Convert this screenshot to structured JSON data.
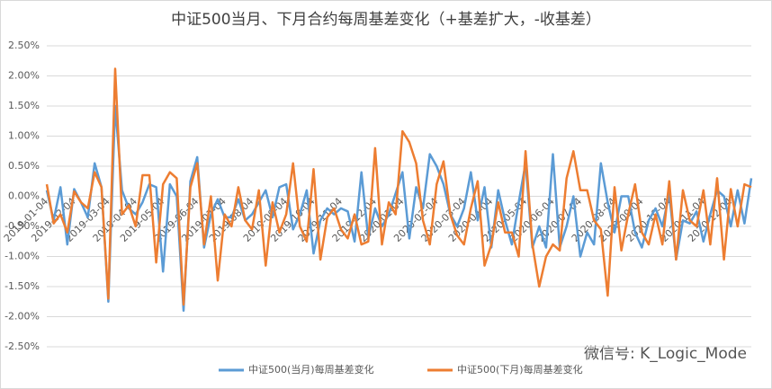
{
  "chart_data": {
    "type": "line",
    "title": "中证500当月、下月合约每周基差变化（+基差扩大，-收基差）",
    "annotation": "微信号: K_Logic_Mode",
    "categories": [
      "2019-01-04",
      null,
      null,
      null,
      "2019-02-04",
      null,
      null,
      null,
      null,
      "2019-03-04",
      null,
      null,
      null,
      "2019-04-04",
      null,
      null,
      null,
      "2019-05-04",
      null,
      null,
      null,
      null,
      "2019-06-04",
      null,
      null,
      null,
      "2019-07-04",
      null,
      null,
      null,
      "2019-08-04",
      null,
      null,
      null,
      null,
      "2019-09-04",
      null,
      null,
      null,
      "2019-10-04",
      null,
      null,
      null,
      "2019-11-04",
      null,
      null,
      null,
      null,
      "2019-12-04",
      null,
      null,
      null,
      "2020-01-04",
      null,
      null,
      null,
      null,
      "2020-02-04",
      null,
      null,
      null,
      "2020-03-04",
      null,
      null,
      null,
      "2020-04-04",
      null,
      null,
      null,
      null,
      "2020-05-04",
      null,
      null,
      null,
      "2020-06-04",
      null,
      null,
      null,
      "2020-07-04",
      null,
      null,
      null,
      null,
      "2020-08-04",
      null,
      null,
      null,
      "2020-09-04",
      null,
      null,
      null,
      "2020-10-04",
      null,
      null,
      null,
      null,
      "2020-11-04",
      null,
      null,
      null,
      "2020-12-04",
      null,
      null,
      null
    ],
    "series": [
      {
        "name": "中证500(当月)每周基差变化",
        "color": "#5b9bd5",
        "values": [
          0.1,
          -0.4,
          0.15,
          -0.8,
          0.12,
          -0.1,
          -0.35,
          0.55,
          0.15,
          -1.75,
          1.5,
          0.1,
          -0.2,
          -0.3,
          -0.1,
          0.2,
          0.15,
          -1.25,
          0.2,
          0.0,
          -1.9,
          0.25,
          0.65,
          -0.85,
          -0.3,
          -0.05,
          -0.35,
          -0.35,
          -0.05,
          -0.4,
          -0.3,
          -0.1,
          0.1,
          -0.35,
          0.15,
          0.2,
          -0.55,
          -0.3,
          0.1,
          -0.95,
          -0.4,
          -0.2,
          -0.3,
          -0.2,
          -0.25,
          -0.75,
          0.4,
          -0.7,
          -0.2,
          -0.5,
          -0.3,
          0.05,
          0.4,
          -0.7,
          0.15,
          -0.2,
          0.7,
          0.5,
          0.2,
          -0.3,
          -0.5,
          -0.2,
          0.4,
          -0.4,
          0.15,
          -0.85,
          0.1,
          -0.4,
          -0.8,
          -0.1,
          0.55,
          -0.85,
          -0.5,
          -0.85,
          0.7,
          -0.85,
          -0.5,
          0.0,
          -1.0,
          -0.6,
          -0.8,
          0.55,
          -0.1,
          -0.6,
          0.0,
          0.0,
          -0.6,
          -0.85,
          -0.4,
          -0.2,
          -0.5,
          0.05,
          -1.05,
          -0.4,
          -0.45,
          -0.25,
          -0.75,
          -0.3,
          0.1,
          0.0,
          -0.5,
          0.1,
          -0.45,
          0.3
        ]
      },
      {
        "name": "中证500(下月)每周基差变化",
        "color": "#ed7d31",
        "values": [
          0.2,
          -0.45,
          -0.3,
          -0.6,
          0.08,
          -0.1,
          -0.2,
          0.4,
          0.15,
          -1.7,
          2.12,
          -0.3,
          -0.15,
          -0.5,
          0.35,
          0.35,
          -1.1,
          0.2,
          0.4,
          0.3,
          -1.8,
          0.15,
          0.55,
          -0.8,
          0.0,
          -1.4,
          -0.3,
          -0.5,
          0.15,
          -0.4,
          -0.55,
          0.1,
          -1.15,
          -0.1,
          -0.6,
          -0.3,
          0.55,
          -0.5,
          -0.75,
          0.45,
          -1.05,
          -0.35,
          -0.2,
          -0.55,
          -0.7,
          -0.3,
          -0.8,
          -0.75,
          0.8,
          -0.8,
          -0.1,
          -0.3,
          1.08,
          0.9,
          0.55,
          -0.4,
          -0.8,
          0.2,
          0.58,
          -0.3,
          -0.65,
          -0.8,
          -0.2,
          0.25,
          -1.15,
          -0.8,
          -0.1,
          -0.6,
          -0.6,
          -1.0,
          0.75,
          -0.8,
          -1.5,
          -1.0,
          -0.8,
          -0.9,
          0.3,
          0.75,
          0.1,
          0.1,
          -0.4,
          -0.55,
          -1.65,
          0.15,
          -0.9,
          -0.3,
          0.2,
          -0.6,
          -0.8,
          -0.3,
          -0.8,
          0.25,
          -1.05,
          0.1,
          -0.4,
          -0.5,
          0.1,
          -0.8,
          0.3,
          -1.05,
          0.12,
          -0.5,
          0.2,
          0.15
        ]
      }
    ],
    "ylim": [
      -2.5,
      2.5
    ],
    "yticks": [
      {
        "value": -2.5,
        "label": "-2.50%"
      },
      {
        "value": -2,
        "label": "-2.00%"
      },
      {
        "value": -1.5,
        "label": "-1.50%"
      },
      {
        "value": -1,
        "label": "-1.00%"
      },
      {
        "value": -0.5,
        "label": "-0.50%"
      },
      {
        "value": 0,
        "label": "0.00%"
      },
      {
        "value": 0.5,
        "label": "0.50%"
      },
      {
        "value": 1,
        "label": "1.00%"
      },
      {
        "value": 1.5,
        "label": "1.50%"
      },
      {
        "value": 2,
        "label": "2.00%"
      },
      {
        "value": 2.5,
        "label": "2.50%"
      }
    ],
    "grid": true,
    "legend": "bottom"
  }
}
